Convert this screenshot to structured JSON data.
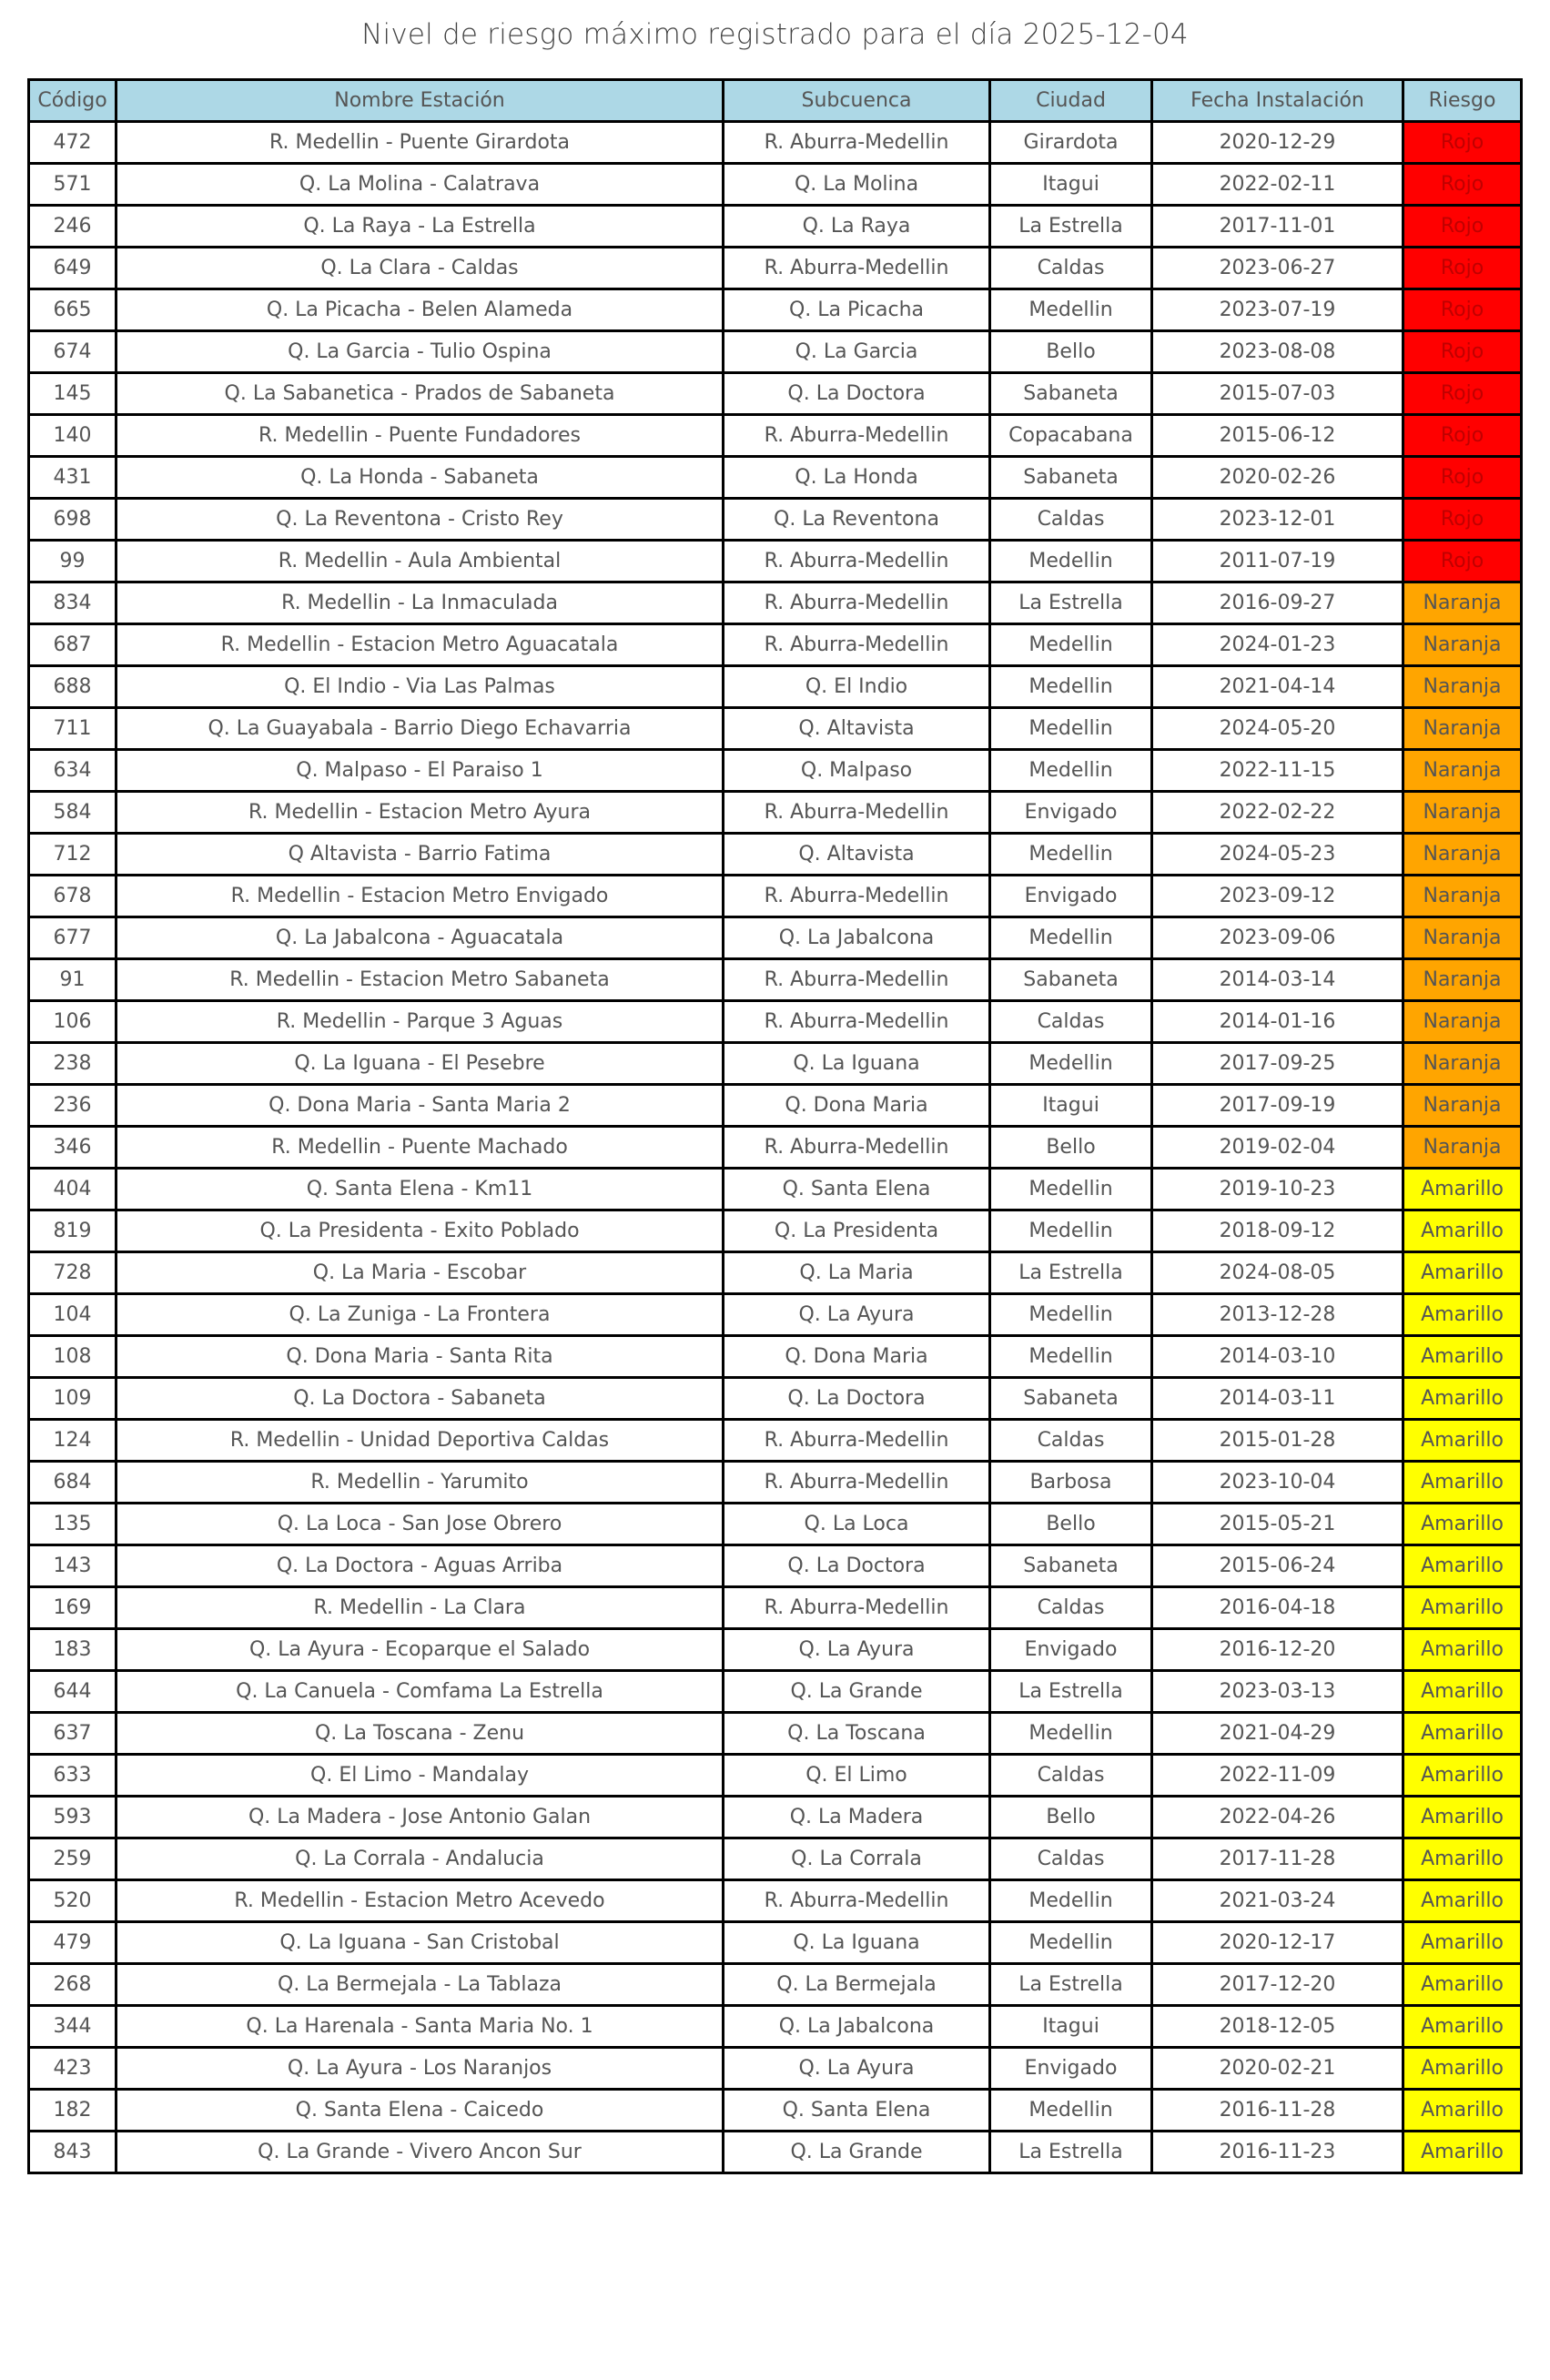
{
  "title": "Nivel de riesgo máximo registrado para el día 2025-12-04",
  "columns": [
    "Código",
    "Nombre Estación",
    "Subcuenca",
    "Ciudad",
    "Fecha Instalación",
    "Riesgo"
  ],
  "risk_colors": {
    "Rojo": "#ff0000",
    "Naranja": "#ffa500",
    "Amarillo": "#ffff00",
    "header": "#add8e6"
  },
  "rows": [
    [
      "472",
      "R. Medellin - Puente Girardota",
      "R. Aburra-Medellin",
      "Girardota",
      "2020-12-29",
      "Rojo"
    ],
    [
      "571",
      "Q. La Molina - Calatrava",
      "Q. La Molina",
      "Itagui",
      "2022-02-11",
      "Rojo"
    ],
    [
      "246",
      "Q. La Raya - La Estrella",
      "Q. La Raya",
      "La Estrella",
      "2017-11-01",
      "Rojo"
    ],
    [
      "649",
      "Q. La Clara - Caldas",
      "R. Aburra-Medellin",
      "Caldas",
      "2023-06-27",
      "Rojo"
    ],
    [
      "665",
      "Q. La Picacha - Belen Alameda",
      "Q. La Picacha",
      "Medellin",
      "2023-07-19",
      "Rojo"
    ],
    [
      "674",
      "Q. La Garcia - Tulio Ospina",
      "Q. La Garcia",
      "Bello",
      "2023-08-08",
      "Rojo"
    ],
    [
      "145",
      "Q. La Sabanetica - Prados de Sabaneta",
      "Q. La Doctora",
      "Sabaneta",
      "2015-07-03",
      "Rojo"
    ],
    [
      "140",
      "R. Medellin - Puente Fundadores",
      "R. Aburra-Medellin",
      "Copacabana",
      "2015-06-12",
      "Rojo"
    ],
    [
      "431",
      "Q. La Honda - Sabaneta",
      "Q. La Honda",
      "Sabaneta",
      "2020-02-26",
      "Rojo"
    ],
    [
      "698",
      "Q. La Reventona - Cristo Rey",
      "Q. La Reventona",
      "Caldas",
      "2023-12-01",
      "Rojo"
    ],
    [
      "99",
      "R. Medellin - Aula Ambiental",
      "R. Aburra-Medellin",
      "Medellin",
      "2011-07-19",
      "Rojo"
    ],
    [
      "834",
      "R. Medellin - La Inmaculada",
      "R. Aburra-Medellin",
      "La Estrella",
      "2016-09-27",
      "Naranja"
    ],
    [
      "687",
      "R. Medellin - Estacion Metro Aguacatala",
      "R. Aburra-Medellin",
      "Medellin",
      "2024-01-23",
      "Naranja"
    ],
    [
      "688",
      "Q. El Indio - Via Las Palmas",
      "Q. El Indio",
      "Medellin",
      "2021-04-14",
      "Naranja"
    ],
    [
      "711",
      "Q. La Guayabala - Barrio Diego Echavarria",
      "Q. Altavista",
      "Medellin",
      "2024-05-20",
      "Naranja"
    ],
    [
      "634",
      "Q. Malpaso - El Paraiso 1",
      "Q. Malpaso",
      "Medellin",
      "2022-11-15",
      "Naranja"
    ],
    [
      "584",
      "R. Medellin - Estacion Metro Ayura",
      "R. Aburra-Medellin",
      "Envigado",
      "2022-02-22",
      "Naranja"
    ],
    [
      "712",
      "Q Altavista - Barrio Fatima",
      "Q. Altavista",
      "Medellin",
      "2024-05-23",
      "Naranja"
    ],
    [
      "678",
      "R. Medellin - Estacion Metro Envigado",
      "R. Aburra-Medellin",
      "Envigado",
      "2023-09-12",
      "Naranja"
    ],
    [
      "677",
      "Q. La Jabalcona - Aguacatala",
      "Q. La Jabalcona",
      "Medellin",
      "2023-09-06",
      "Naranja"
    ],
    [
      "91",
      "R. Medellin - Estacion Metro Sabaneta",
      "R. Aburra-Medellin",
      "Sabaneta",
      "2014-03-14",
      "Naranja"
    ],
    [
      "106",
      "R. Medellin - Parque 3 Aguas",
      "R. Aburra-Medellin",
      "Caldas",
      "2014-01-16",
      "Naranja"
    ],
    [
      "238",
      "Q. La Iguana - El Pesebre",
      "Q. La Iguana",
      "Medellin",
      "2017-09-25",
      "Naranja"
    ],
    [
      "236",
      "Q. Dona Maria - Santa Maria 2",
      "Q. Dona Maria",
      "Itagui",
      "2017-09-19",
      "Naranja"
    ],
    [
      "346",
      "R. Medellin - Puente Machado",
      "R. Aburra-Medellin",
      "Bello",
      "2019-02-04",
      "Naranja"
    ],
    [
      "404",
      "Q. Santa Elena - Km11",
      "Q. Santa Elena",
      "Medellin",
      "2019-10-23",
      "Amarillo"
    ],
    [
      "819",
      "Q. La Presidenta - Exito Poblado",
      "Q. La Presidenta",
      "Medellin",
      "2018-09-12",
      "Amarillo"
    ],
    [
      "728",
      "Q. La Maria - Escobar",
      "Q. La Maria",
      "La Estrella",
      "2024-08-05",
      "Amarillo"
    ],
    [
      "104",
      "Q. La Zuniga - La Frontera",
      "Q. La Ayura",
      "Medellin",
      "2013-12-28",
      "Amarillo"
    ],
    [
      "108",
      "Q. Dona Maria - Santa Rita",
      "Q. Dona Maria",
      "Medellin",
      "2014-03-10",
      "Amarillo"
    ],
    [
      "109",
      "Q. La Doctora - Sabaneta",
      "Q. La Doctora",
      "Sabaneta",
      "2014-03-11",
      "Amarillo"
    ],
    [
      "124",
      "R. Medellin - Unidad Deportiva Caldas",
      "R. Aburra-Medellin",
      "Caldas",
      "2015-01-28",
      "Amarillo"
    ],
    [
      "684",
      "R. Medellin - Yarumito",
      "R. Aburra-Medellin",
      "Barbosa",
      "2023-10-04",
      "Amarillo"
    ],
    [
      "135",
      "Q. La Loca - San Jose Obrero",
      "Q. La Loca",
      "Bello",
      "2015-05-21",
      "Amarillo"
    ],
    [
      "143",
      "Q. La Doctora - Aguas Arriba",
      "Q. La Doctora",
      "Sabaneta",
      "2015-06-24",
      "Amarillo"
    ],
    [
      "169",
      "R. Medellin - La Clara",
      "R. Aburra-Medellin",
      "Caldas",
      "2016-04-18",
      "Amarillo"
    ],
    [
      "183",
      "Q. La Ayura - Ecoparque el Salado",
      "Q. La Ayura",
      "Envigado",
      "2016-12-20",
      "Amarillo"
    ],
    [
      "644",
      "Q. La Canuela - Comfama La Estrella",
      "Q. La Grande",
      "La Estrella",
      "2023-03-13",
      "Amarillo"
    ],
    [
      "637",
      "Q. La Toscana - Zenu",
      "Q. La Toscana",
      "Medellin",
      "2021-04-29",
      "Amarillo"
    ],
    [
      "633",
      "Q. El Limo - Mandalay",
      "Q. El Limo",
      "Caldas",
      "2022-11-09",
      "Amarillo"
    ],
    [
      "593",
      "Q. La Madera - Jose Antonio Galan",
      "Q. La Madera",
      "Bello",
      "2022-04-26",
      "Amarillo"
    ],
    [
      "259",
      "Q. La Corrala - Andalucia",
      "Q. La Corrala",
      "Caldas",
      "2017-11-28",
      "Amarillo"
    ],
    [
      "520",
      "R. Medellin - Estacion Metro Acevedo",
      "R. Aburra-Medellin",
      "Medellin",
      "2021-03-24",
      "Amarillo"
    ],
    [
      "479",
      "Q. La Iguana - San Cristobal",
      "Q. La Iguana",
      "Medellin",
      "2020-12-17",
      "Amarillo"
    ],
    [
      "268",
      "Q. La Bermejala - La Tablaza",
      "Q. La Bermejala",
      "La Estrella",
      "2017-12-20",
      "Amarillo"
    ],
    [
      "344",
      "Q. La Harenala - Santa Maria No. 1",
      "Q. La Jabalcona",
      "Itagui",
      "2018-12-05",
      "Amarillo"
    ],
    [
      "423",
      "Q. La Ayura - Los Naranjos",
      "Q. La Ayura",
      "Envigado",
      "2020-02-21",
      "Amarillo"
    ],
    [
      "182",
      "Q. Santa Elena - Caicedo",
      "Q. Santa Elena",
      "Medellin",
      "2016-11-28",
      "Amarillo"
    ],
    [
      "843",
      "Q. La Grande - Vivero Ancon Sur",
      "Q. La Grande",
      "La Estrella",
      "2016-11-23",
      "Amarillo"
    ]
  ]
}
